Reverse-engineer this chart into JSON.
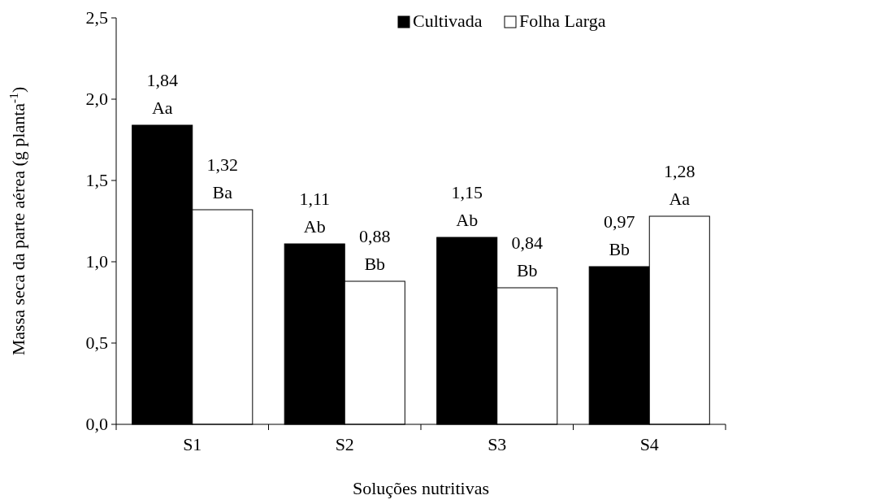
{
  "chart_data": {
    "type": "bar",
    "xlabel": "Soluções nutritivas",
    "ylabel": "Massa seca da parte aérea (g planta$^{-1}$)",
    "categories": [
      "S1",
      "S2",
      "S3",
      "S4"
    ],
    "series": [
      {
        "name": "Cultivada",
        "color": "#000000",
        "values": [
          1.84,
          1.11,
          1.15,
          0.97
        ],
        "value_labels": [
          "1,84\nAa",
          "1,11\nAb",
          "1,15\nAb",
          "0,97\nBb"
        ]
      },
      {
        "name": "Folha Larga",
        "color": "#ffffff",
        "values": [
          1.32,
          0.88,
          0.84,
          1.28
        ],
        "value_labels": [
          "1,32\nBa",
          "0,88\nBb",
          "0,84\nBb",
          "1,28\nAa"
        ]
      }
    ],
    "ylim": [
      0,
      2.5
    ],
    "yticks": [
      {
        "value": 0,
        "label": "0,0"
      },
      {
        "value": 0.5,
        "label": "0,5"
      },
      {
        "value": 1,
        "label": "1,0"
      },
      {
        "value": 1.5,
        "label": "1,5"
      },
      {
        "value": 2,
        "label": "2,0"
      },
      {
        "value": 2.5,
        "label": "2,5"
      }
    ],
    "grid": false,
    "legend": "top"
  }
}
